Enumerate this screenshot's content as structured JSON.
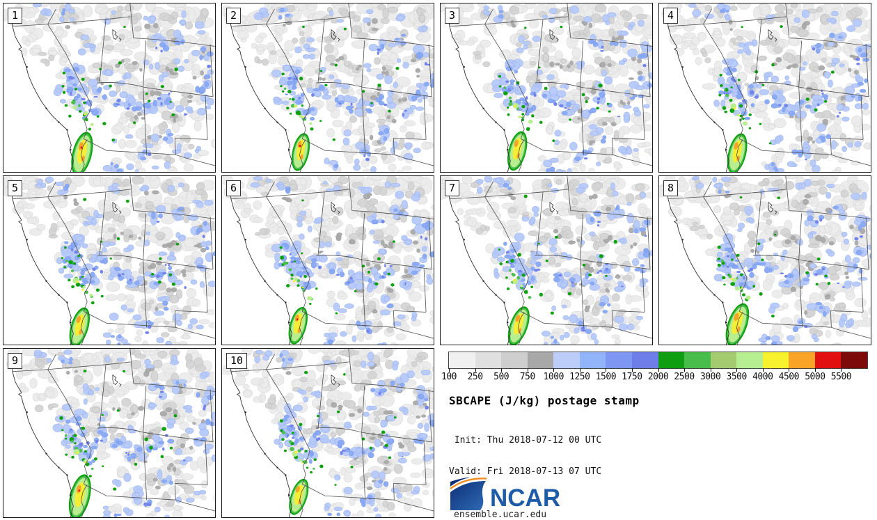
{
  "info": {
    "title": "SBCAPE (J/kg) postage stamp",
    "init": " Init: Thu 2018-07-12 00 UTC",
    "valid": "Valid: Fri 2018-07-13 07 UTC",
    "logo": "NCAR",
    "url": "ensemble.ucar.edu"
  },
  "panels": [
    {
      "label": "1"
    },
    {
      "label": "2"
    },
    {
      "label": "3"
    },
    {
      "label": "4"
    },
    {
      "label": "5"
    },
    {
      "label": "6"
    },
    {
      "label": "7"
    },
    {
      "label": "8"
    },
    {
      "label": "9"
    },
    {
      "label": "10"
    }
  ],
  "colorbar": {
    "levels": [
      "100",
      "250",
      "500",
      "750",
      "1000",
      "1250",
      "1500",
      "1750",
      "2000",
      "2500",
      "3000",
      "3500",
      "4000",
      "4500",
      "5000",
      "5500"
    ],
    "colors": [
      "#f0f0f0",
      "#e0e0e0",
      "#cecece",
      "#a8a8a8",
      "#bccdf9",
      "#92b4f9",
      "#7e97f2",
      "#6d7ee9",
      "#0f9e11",
      "#49bd4b",
      "#a4cb70",
      "#b6ef92",
      "#f8f12e",
      "#f9a426",
      "#e20f10",
      "#7c0a08"
    ]
  },
  "chart_data": {
    "type": "heatmap",
    "title": "SBCAPE (J/kg) postage stamp",
    "units": "J/kg",
    "legend_levels": [
      100,
      250,
      500,
      750,
      1000,
      1250,
      1500,
      1750,
      2000,
      2500,
      3000,
      3500,
      4000,
      4500,
      5000,
      5500
    ],
    "panel_members": [
      "1",
      "2",
      "3",
      "4",
      "5",
      "6",
      "7",
      "8",
      "9",
      "10"
    ],
    "init_time": "Thu 2018-07-12 00 UTC",
    "valid_time": "Fri 2018-07-13 07 UTC"
  },
  "map_palette": {
    "light_gray": "#ececec",
    "light_gray_edge": "#dadada",
    "med_gray": "#d6d6d6",
    "med_gray_edge": "#c2c2c2",
    "dark_gray": "#adadad",
    "dark_gray_edge": "#9a9a9a",
    "light_blue": "#b9cbf8",
    "light_blue_edge": "#9db5f2",
    "mid_blue": "#8cabf5",
    "mid_blue_edge": "#7697ee",
    "deep_blue": "#7384ea",
    "green": "#0da10d",
    "mid_green": "#4fc050",
    "light_green": "#b9ee90",
    "yellow": "#f6ee35",
    "orange": "#f8a426",
    "red": "#e21010",
    "border": "#4d4d4d",
    "coast": "#2e2e2e",
    "logo_blue_dark": "#0d2f77",
    "logo_blue": "#2f6cb5",
    "logo_orange": "#f28a1e",
    "logo_text_blue": "#1e5ca8"
  }
}
